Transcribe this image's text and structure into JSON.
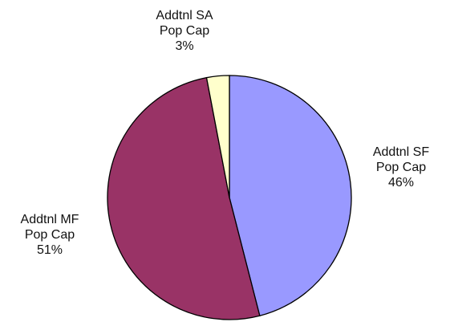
{
  "chart_data": {
    "type": "pie",
    "categories": [
      "Addtnl SF Pop Cap",
      "Addtnl MF Pop Cap",
      "Addtnl SA Pop Cap"
    ],
    "values": [
      46,
      51,
      3
    ],
    "value_labels": [
      "46%",
      "51%",
      "3%"
    ],
    "colors": [
      "#9999ff",
      "#993366",
      "#ffffcc"
    ]
  }
}
